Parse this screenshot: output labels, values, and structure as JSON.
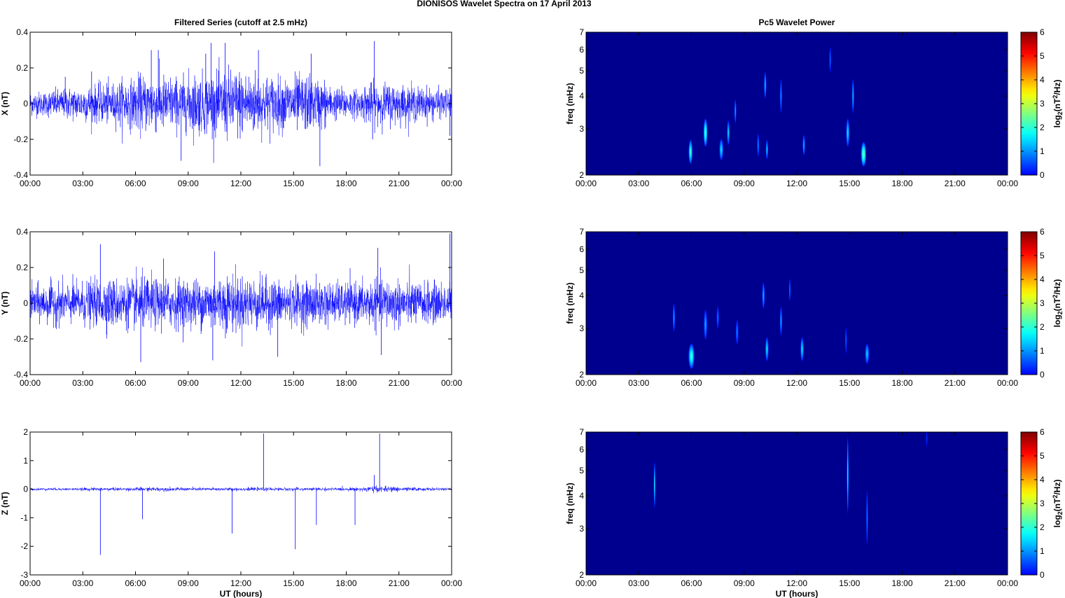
{
  "figure_title": "DIONISOS Wavelet Spectra on 17 April     2013",
  "colors": {
    "trace": "#0000ff",
    "spectrum_background": "#00008f"
  },
  "chart_data": [
    {
      "type": "line",
      "title": "Filtered Series (cutoff at 2.5 mHz)",
      "ylabel": "X (nT)",
      "xlabel": "",
      "x_ticks": [
        "00:00",
        "03:00",
        "06:00",
        "09:00",
        "12:00",
        "15:00",
        "18:00",
        "21:00",
        "00:00"
      ],
      "x_range_hours": [
        0,
        24
      ],
      "ylim": [
        -0.4,
        0.4
      ],
      "y_ticks": [
        -0.4,
        -0.2,
        0,
        0.2,
        0.4
      ],
      "grid": false,
      "series": [
        {
          "noise_amplitude_by_hour": [
            0.06,
            0.07,
            0.08,
            0.09,
            0.1,
            0.12,
            0.14,
            0.14,
            0.13,
            0.15,
            0.15,
            0.17,
            0.16,
            0.14,
            0.13,
            0.14,
            0.12,
            0.08,
            0.07,
            0.1,
            0.1,
            0.09,
            0.08,
            0.07
          ],
          "spikes": [
            [
              2.0,
              0.15
            ],
            [
              3.5,
              0.18
            ],
            [
              6.9,
              0.3
            ],
            [
              8.6,
              -0.32
            ],
            [
              10.0,
              0.28
            ],
            [
              11.1,
              0.34
            ],
            [
              13.0,
              0.3
            ],
            [
              16.5,
              -0.35
            ],
            [
              16.0,
              0.28
            ],
            [
              19.6,
              0.35
            ],
            [
              19.5,
              -0.2
            ],
            [
              23.9,
              -0.18
            ],
            [
              7.3,
              0.3
            ],
            [
              10.3,
              0.34
            ]
          ]
        }
      ]
    },
    {
      "type": "line",
      "ylabel": "Y (nT)",
      "xlabel": "",
      "x_ticks": [
        "00:00",
        "03:00",
        "06:00",
        "09:00",
        "12:00",
        "15:00",
        "18:00",
        "21:00",
        "00:00"
      ],
      "x_range_hours": [
        0,
        24
      ],
      "ylim": [
        -0.4,
        0.4
      ],
      "y_ticks": [
        -0.4,
        -0.2,
        0,
        0.2,
        0.4
      ],
      "grid": false,
      "series": [
        {
          "noise_amplitude_by_hour": [
            0.09,
            0.1,
            0.1,
            0.11,
            0.12,
            0.12,
            0.13,
            0.12,
            0.12,
            0.12,
            0.13,
            0.14,
            0.13,
            0.12,
            0.11,
            0.11,
            0.11,
            0.1,
            0.1,
            0.11,
            0.12,
            0.11,
            0.1,
            0.1
          ],
          "spikes": [
            [
              4.0,
              0.33
            ],
            [
              6.3,
              -0.33
            ],
            [
              10.5,
              0.29
            ],
            [
              10.4,
              -0.32
            ],
            [
              14.1,
              -0.3
            ],
            [
              19.8,
              0.31
            ],
            [
              20.0,
              -0.29
            ],
            [
              23.9,
              0.39
            ],
            [
              7.6,
              0.25
            ]
          ]
        }
      ]
    },
    {
      "type": "line",
      "ylabel": "Z (nT)",
      "xlabel": "UT (hours)",
      "x_ticks": [
        "00:00",
        "03:00",
        "06:00",
        "09:00",
        "12:00",
        "15:00",
        "18:00",
        "21:00",
        "00:00"
      ],
      "x_range_hours": [
        0,
        24
      ],
      "ylim": [
        -3,
        2
      ],
      "y_ticks": [
        -3,
        -2,
        -1,
        0,
        1,
        2
      ],
      "grid": false,
      "series": [
        {
          "noise_amplitude_by_hour": [
            0.04,
            0.04,
            0.04,
            0.05,
            0.05,
            0.05,
            0.06,
            0.06,
            0.05,
            0.05,
            0.05,
            0.05,
            0.05,
            0.05,
            0.05,
            0.05,
            0.05,
            0.05,
            0.05,
            0.09,
            0.08,
            0.06,
            0.05,
            0.04
          ],
          "spikes": [
            [
              4.0,
              -2.3
            ],
            [
              6.4,
              -1.05
            ],
            [
              11.5,
              -1.55
            ],
            [
              13.3,
              1.95
            ],
            [
              15.1,
              -2.1
            ],
            [
              16.3,
              -1.25
            ],
            [
              18.5,
              -1.25
            ],
            [
              19.9,
              1.95
            ],
            [
              19.6,
              0.5
            ]
          ]
        }
      ]
    },
    {
      "type": "heatmap",
      "title": "Pc5 Wavelet Power",
      "ylabel": "freq (mHz)",
      "xlabel": "",
      "x_ticks": [
        "00:00",
        "03:00",
        "06:00",
        "09:00",
        "12:00",
        "15:00",
        "18:00",
        "21:00",
        "00:00"
      ],
      "x_range_hours": [
        0,
        24
      ],
      "y_scale": "log",
      "ylim": [
        2,
        7
      ],
      "y_ticks": [
        2,
        3,
        4,
        5,
        6,
        7
      ],
      "colorbar_label": "log2(nT2/Hz)",
      "colorbar_range": [
        0,
        6
      ],
      "colorbar_ticks": [
        0,
        1,
        2,
        3,
        4,
        5,
        6
      ],
      "blobs": [
        {
          "hour": 5.95,
          "freq": 2.45,
          "width_hours": 0.12,
          "freq_spread": 0.25,
          "level": 2.4
        },
        {
          "hour": 6.8,
          "freq": 2.9,
          "width_hours": 0.12,
          "freq_spread": 0.35,
          "level": 2.7
        },
        {
          "hour": 7.7,
          "freq": 2.5,
          "width_hours": 0.12,
          "freq_spread": 0.22,
          "level": 1.8
        },
        {
          "hour": 8.1,
          "freq": 2.9,
          "width_hours": 0.08,
          "freq_spread": 0.3,
          "level": 1.7
        },
        {
          "hour": 8.5,
          "freq": 3.5,
          "width_hours": 0.06,
          "freq_spread": 0.35,
          "level": 1.3
        },
        {
          "hour": 9.8,
          "freq": 2.6,
          "width_hours": 0.06,
          "freq_spread": 0.25,
          "level": 1.1
        },
        {
          "hour": 10.2,
          "freq": 4.4,
          "width_hours": 0.07,
          "freq_spread": 0.5,
          "level": 1.5
        },
        {
          "hour": 10.3,
          "freq": 2.5,
          "width_hours": 0.07,
          "freq_spread": 0.2,
          "level": 1.6
        },
        {
          "hour": 11.1,
          "freq": 4.0,
          "width_hours": 0.06,
          "freq_spread": 0.6,
          "level": 1.2
        },
        {
          "hour": 12.4,
          "freq": 2.6,
          "width_hours": 0.07,
          "freq_spread": 0.22,
          "level": 1.5
        },
        {
          "hour": 14.9,
          "freq": 2.9,
          "width_hours": 0.1,
          "freq_spread": 0.35,
          "level": 1.8
        },
        {
          "hour": 15.2,
          "freq": 4.0,
          "width_hours": 0.06,
          "freq_spread": 0.6,
          "level": 1.6
        },
        {
          "hour": 15.8,
          "freq": 2.4,
          "width_hours": 0.16,
          "freq_spread": 0.25,
          "level": 3.0
        },
        {
          "hour": 13.9,
          "freq": 5.5,
          "width_hours": 0.05,
          "freq_spread": 0.6,
          "level": 0.9
        }
      ]
    },
    {
      "type": "heatmap",
      "ylabel": "freq (mHz)",
      "xlabel": "",
      "x_ticks": [
        "00:00",
        "03:00",
        "06:00",
        "09:00",
        "12:00",
        "15:00",
        "18:00",
        "21:00",
        "00:00"
      ],
      "x_range_hours": [
        0,
        24
      ],
      "y_scale": "log",
      "ylim": [
        2,
        7
      ],
      "y_ticks": [
        2,
        3,
        4,
        5,
        6,
        7
      ],
      "colorbar_label": "log2(nT2/Hz)",
      "colorbar_range": [
        0,
        6
      ],
      "colorbar_ticks": [
        0,
        1,
        2,
        3,
        4,
        5,
        6
      ],
      "blobs": [
        {
          "hour": 5.0,
          "freq": 3.3,
          "width_hours": 0.07,
          "freq_spread": 0.4,
          "level": 1.2
        },
        {
          "hour": 6.0,
          "freq": 2.35,
          "width_hours": 0.18,
          "freq_spread": 0.25,
          "level": 2.5
        },
        {
          "hour": 6.8,
          "freq": 3.1,
          "width_hours": 0.1,
          "freq_spread": 0.4,
          "level": 1.3
        },
        {
          "hour": 7.5,
          "freq": 3.3,
          "width_hours": 0.07,
          "freq_spread": 0.3,
          "level": 0.9
        },
        {
          "hour": 8.6,
          "freq": 2.9,
          "width_hours": 0.08,
          "freq_spread": 0.3,
          "level": 1.0
        },
        {
          "hour": 10.1,
          "freq": 4.0,
          "width_hours": 0.08,
          "freq_spread": 0.45,
          "level": 1.4
        },
        {
          "hour": 10.3,
          "freq": 2.5,
          "width_hours": 0.1,
          "freq_spread": 0.25,
          "level": 1.8
        },
        {
          "hour": 11.1,
          "freq": 3.2,
          "width_hours": 0.07,
          "freq_spread": 0.4,
          "level": 1.3
        },
        {
          "hour": 11.6,
          "freq": 4.2,
          "width_hours": 0.05,
          "freq_spread": 0.4,
          "level": 1.0
        },
        {
          "hour": 12.3,
          "freq": 2.5,
          "width_hours": 0.1,
          "freq_spread": 0.25,
          "level": 1.8
        },
        {
          "hour": 14.8,
          "freq": 2.7,
          "width_hours": 0.05,
          "freq_spread": 0.3,
          "level": 0.8
        },
        {
          "hour": 16.0,
          "freq": 2.4,
          "width_hours": 0.12,
          "freq_spread": 0.2,
          "level": 1.6
        }
      ]
    },
    {
      "type": "heatmap",
      "ylabel": "freq (mHz)",
      "xlabel": "UT (hours)",
      "x_ticks": [
        "00:00",
        "03:00",
        "06:00",
        "09:00",
        "12:00",
        "15:00",
        "18:00",
        "21:00",
        "00:00"
      ],
      "x_range_hours": [
        0,
        24
      ],
      "y_scale": "log",
      "ylim": [
        2,
        7
      ],
      "y_ticks": [
        2,
        3,
        4,
        5,
        6,
        7
      ],
      "colorbar_label": "log2(nT2/Hz)",
      "colorbar_range": [
        0,
        6
      ],
      "colorbar_ticks": [
        0,
        1,
        2,
        3,
        4,
        5,
        6
      ],
      "blobs": [
        {
          "hour": 3.9,
          "freq": 4.4,
          "width_hours": 0.05,
          "freq_spread": 0.9,
          "level": 2.0
        },
        {
          "hour": 14.9,
          "freq": 4.8,
          "width_hours": 0.05,
          "freq_spread": 1.6,
          "level": 2.2
        },
        {
          "hour": 16.0,
          "freq": 3.3,
          "width_hours": 0.05,
          "freq_spread": 0.8,
          "level": 1.1
        },
        {
          "hour": 19.4,
          "freq": 6.6,
          "width_hours": 0.04,
          "freq_spread": 0.4,
          "level": 0.5
        }
      ]
    }
  ]
}
